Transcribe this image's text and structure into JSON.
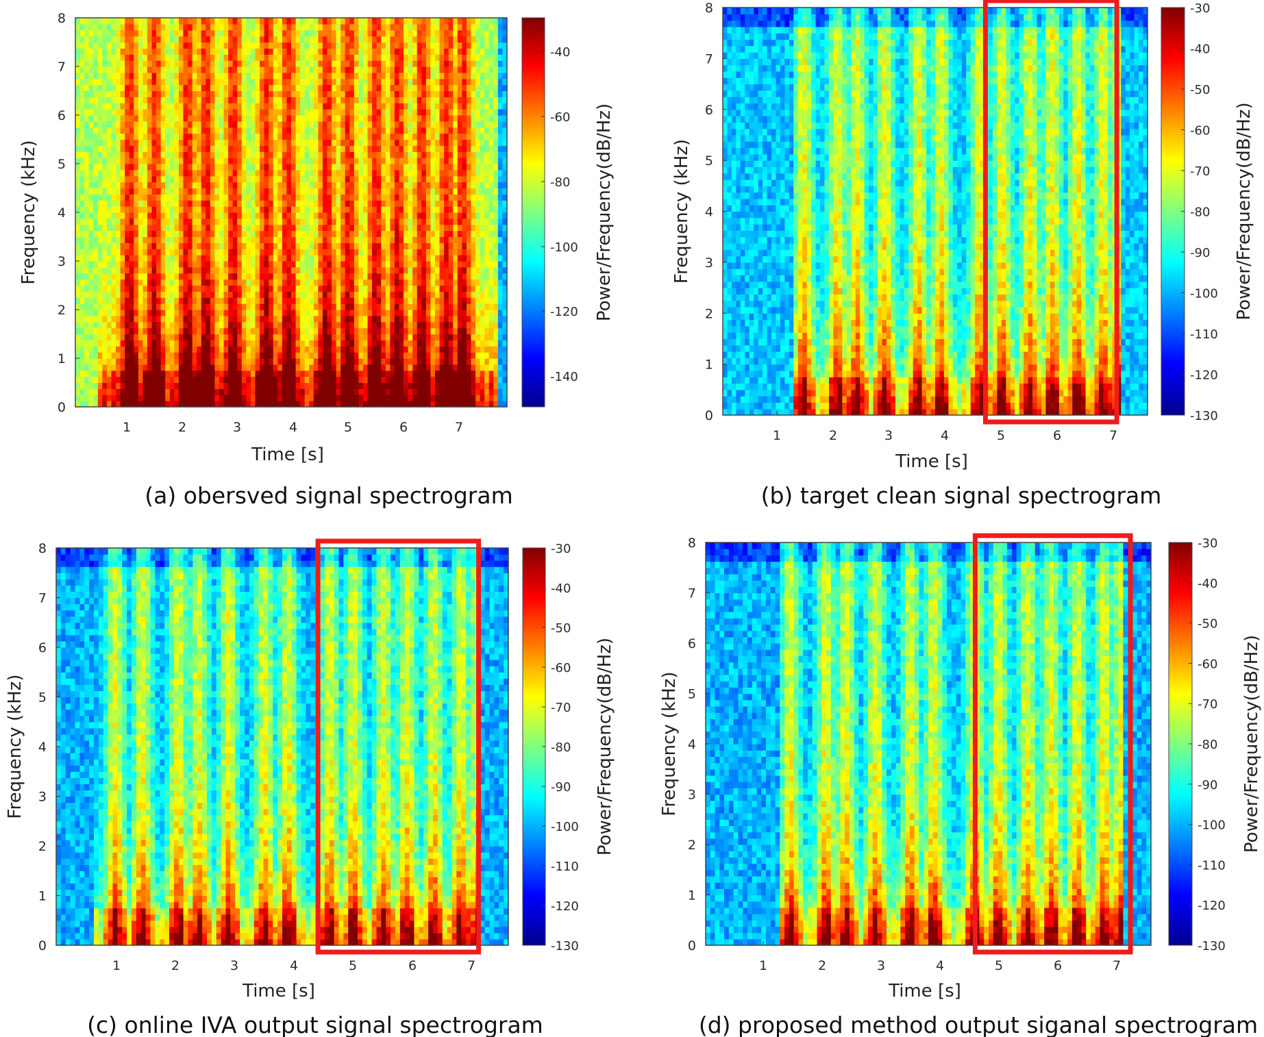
{
  "chart_data": [
    {
      "type": "heatmap",
      "caption": "(a) obersved signal spectrogram",
      "xlabel": "Time [s]",
      "ylabel": "Frequency (kHz)",
      "colorbar_label": "Power/Frequency(dB/Hz)",
      "xlim": [
        0,
        7.9
      ],
      "ylim": [
        0,
        8
      ],
      "xticks": [
        "1",
        "2",
        "3",
        "4",
        "5",
        "6",
        "7"
      ],
      "yticks": [
        "0",
        "1",
        "2",
        "3",
        "4",
        "5",
        "6",
        "7",
        "8"
      ],
      "colorbar_ticks": [
        "-40",
        "-60",
        "-80",
        "-100",
        "-120",
        "-140"
      ],
      "clim": [
        -150,
        -25
      ],
      "highlight_box": null
    },
    {
      "type": "heatmap",
      "caption": "(b) target clean signal spectrogram",
      "xlabel": "Time [s]",
      "ylabel": "Frequency (kHz)",
      "colorbar_label": "Power/Frequency(dB/Hz)",
      "xlim": [
        0,
        7.6
      ],
      "ylim": [
        0,
        8
      ],
      "xticks": [
        "1",
        "2",
        "3",
        "4",
        "5",
        "6",
        "7"
      ],
      "yticks": [
        "0",
        "1",
        "2",
        "3",
        "4",
        "5",
        "6",
        "7",
        "8"
      ],
      "colorbar_ticks": [
        "-30",
        "-40",
        "-50",
        "-60",
        "-70",
        "-80",
        "-90",
        "-100",
        "-110",
        "-120",
        "-130"
      ],
      "clim": [
        -130,
        -30
      ],
      "highlight_box": {
        "t_start": 4.7,
        "t_end": 7.05
      }
    },
    {
      "type": "heatmap",
      "caption": "(c) online IVA output signal spectrogram",
      "xlabel": "Time [s]",
      "ylabel": "Frequency (kHz)",
      "colorbar_label": "Power/Frequency(dB/Hz)",
      "xlim": [
        0,
        7.6
      ],
      "ylim": [
        0,
        8
      ],
      "xticks": [
        "1",
        "2",
        "3",
        "4",
        "5",
        "6",
        "7"
      ],
      "yticks": [
        "0",
        "1",
        "2",
        "3",
        "4",
        "5",
        "6",
        "7",
        "8"
      ],
      "colorbar_ticks": [
        "-30",
        "-40",
        "-50",
        "-60",
        "-70",
        "-80",
        "-90",
        "-100",
        "-110",
        "-120",
        "-130"
      ],
      "clim": [
        -130,
        -30
      ],
      "highlight_box": {
        "t_start": 4.4,
        "t_end": 7.1
      }
    },
    {
      "type": "heatmap",
      "caption": "(d) proposed method output siganal spectrogram",
      "xlabel": "Time [s]",
      "ylabel": "Frequency (kHz)",
      "colorbar_label": "Power/Frequency(dB/Hz)",
      "xlim": [
        0,
        7.6
      ],
      "ylim": [
        0,
        8
      ],
      "xticks": [
        "1",
        "2",
        "3",
        "4",
        "5",
        "6",
        "7"
      ],
      "yticks": [
        "0",
        "1",
        "2",
        "3",
        "4",
        "5",
        "6",
        "7",
        "8"
      ],
      "colorbar_ticks": [
        "-30",
        "-40",
        "-50",
        "-60",
        "-70",
        "-80",
        "-90",
        "-100",
        "-110",
        "-120",
        "-130"
      ],
      "clim": [
        -130,
        -30
      ],
      "highlight_box": {
        "t_start": 4.6,
        "t_end": 7.25
      }
    }
  ],
  "colors": {
    "highlight": "#ee1c1c",
    "axis": "#333333",
    "background": "#ffffff"
  }
}
